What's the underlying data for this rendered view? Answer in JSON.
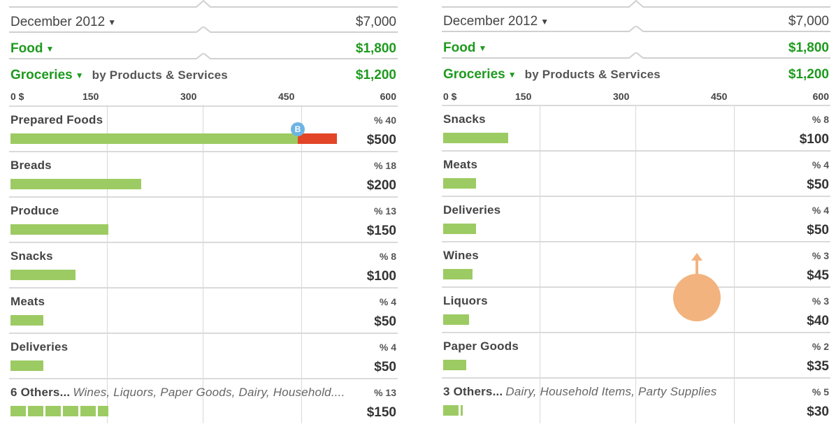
{
  "panels": [
    {
      "period": {
        "label": "December  2012",
        "amount": "$7,000"
      },
      "category": {
        "label": "Food",
        "amount": "$1,800"
      },
      "subcategory": {
        "label": "Groceries",
        "by": "by Products & Services",
        "amount": "$1,200"
      },
      "axis": {
        "ticks": [
          "0 $",
          "150",
          "300",
          "450",
          "600"
        ]
      },
      "marker": "B",
      "items": [
        {
          "name": "Prepared Foods",
          "pct": "% 40",
          "amount": "$500",
          "value": 500,
          "budget": 440
        },
        {
          "name": "Breads",
          "pct": "% 18",
          "amount": "$200",
          "value": 200
        },
        {
          "name": "Produce",
          "pct": "% 13",
          "amount": "$150",
          "value": 150
        },
        {
          "name": "Snacks",
          "pct": "% 8",
          "amount": "$100",
          "value": 100
        },
        {
          "name": "Meats",
          "pct": "% 4",
          "amount": "$50",
          "value": 50
        },
        {
          "name": "Deliveries",
          "pct": "% 4",
          "amount": "$50",
          "value": 50
        },
        {
          "name": "6 Others...",
          "others": "Wines, Liquors, Paper Goods, Dairy, Household....",
          "pct": "% 13",
          "amount": "$150",
          "value": 150,
          "segmented": true
        }
      ]
    },
    {
      "period": {
        "label": "December  2012",
        "amount": "$7,000"
      },
      "category": {
        "label": "Food",
        "amount": "$1,800"
      },
      "subcategory": {
        "label": "Groceries",
        "by": "by Products & Services",
        "amount": "$1,200"
      },
      "axis": {
        "ticks": [
          "0 $",
          "150",
          "300",
          "450",
          "600"
        ]
      },
      "items": [
        {
          "name": "Snacks",
          "pct": "% 8",
          "amount": "$100",
          "value": 100
        },
        {
          "name": "Meats",
          "pct": "% 4",
          "amount": "$50",
          "value": 50
        },
        {
          "name": "Deliveries",
          "pct": "% 4",
          "amount": "$50",
          "value": 50
        },
        {
          "name": "Wines",
          "pct": "% 3",
          "amount": "$45",
          "value": 45
        },
        {
          "name": "Liquors",
          "pct": "% 3",
          "amount": "$40",
          "value": 40
        },
        {
          "name": "Paper Goods",
          "pct": "% 2",
          "amount": "$35",
          "value": 35
        },
        {
          "name": "3 Others...",
          "others": "Dairy, Household Items, Party Supplies",
          "pct": "% 5",
          "amount": "$30",
          "value": 30,
          "segmented": true
        }
      ]
    }
  ],
  "colors": {
    "green": "#1e9a1e",
    "bar": "#9dcb63",
    "over": "#e24527",
    "marker": "#6cb4e4",
    "scrollBlob": "#f3b37e"
  }
}
